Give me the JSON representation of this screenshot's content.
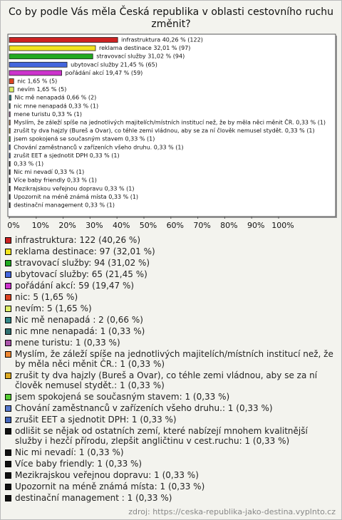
{
  "chart_data": {
    "type": "bar",
    "orientation": "horizontal",
    "title": "Co by podle Vás měla Česká republika v oblasti cestovního ruchu změnit?",
    "categories": [
      "infrastruktura: 122 (40,26 %)",
      "reklama destinace: 97 (32,01 %)",
      "stravovací služby: 94 (31,02 %)",
      "ubytovací služby: 65 (21,45 %)",
      "pořádání akcí: 59 (19,47 %)",
      "nic: 5 (1,65 %)",
      "nevím: 5 (1,65 %)",
      "Nic mě nenapadá : 2 (0,66 %)",
      "nic mne nenapadá: 1 (0,33 %)",
      "mene turistu: 1 (0,33 %)",
      "Myslím, že záleží spíše na jednotlivých majitelích/místních institucí než, že by měla něci měnit ČR.: 1 (0,33 %)",
      "zrušit ty dva hajzly (Bureš a Ovar), co téhle zemi vládnou, aby se za ní člověk nemusel stydět.: 1 (0,33 %)",
      "jsem spokojená se současným stavem: 1 (0,33 %)",
      "Chování zaměstnanců v zařízeních všeho druhu.: 1 (0,33 %)",
      "zrušit EET a sjednotit DPH: 1 (0,33 %)",
      "odlišit se nějak od ostatních zemí, které nabízejí mnohem kvalitnější služby i hezčí přírodu, zlepšit angličtinu v cest.ruchu: 1 (0,33 %)",
      "Nic mi nevadí: 1 (0,33 %)",
      "Více baby friendly: 1 (0,33 %)",
      "Mezikrajskou veřejnou dopravu: 1 (0,33 %)",
      "Upozornit na méně známá místa: 1 (0,33 %)",
      "destinační management : 1 (0,33 %)"
    ],
    "values": [
      40.26,
      32.01,
      31.02,
      21.45,
      19.47,
      1.65,
      1.65,
      0.66,
      0.33,
      0.33,
      0.33,
      0.33,
      0.33,
      0.33,
      0.33,
      0.33,
      0.33,
      0.33,
      0.33,
      0.33,
      0.33
    ],
    "value_labels": [
      "infrastruktura 40,26 % (122)",
      "reklama destinace 32,01 % (97)",
      "stravovací služby 31,02 % (94)",
      "ubytovací služby 21,45 % (65)",
      "pořádání akcí 19,47 % (59)",
      "nic 1,65 % (5)",
      "nevím 1,65 % (5)",
      "Nic mě nenapadá  0,66 % (2)",
      "nic mne nenapadá 0,33 % (1)",
      "mene turistu 0,33 % (1)",
      "Myslím, že záleží spíše na jednotlivých majitelích/místních institucí než, že by měla něci měnit ČR. 0,33 % (1)",
      "zrušit ty dva hajzly (Bureš a Ovar), co téhle zemi vládnou, aby se za ní člověk nemusel stydět. 0,33 % (1)",
      "jsem spokojená se současným stavem 0,33 % (1)",
      "Chování zaměstnanců v zařízeních všeho druhu. 0,33 % (1)",
      "zrušit EET a sjednotit DPH 0,33 % (1)",
      "0,33 % (1)",
      "Nic mi nevadí 0,33 % (1)",
      "Více baby friendly 0,33 % (1)",
      "Mezikrajskou veřejnou dopravu 0,33 % (1)",
      "Upozornit na méně známá místa 0,33 % (1)",
      "destinační management  0,33 % (1)"
    ],
    "colors": [
      "#cc2222",
      "#f2e41e",
      "#22aa22",
      "#4466dd",
      "#cc33cc",
      "#dd4422",
      "#dcee66",
      "#338888",
      "#2f7070",
      "#aa55aa",
      "#ee8833",
      "#ddaa22",
      "#55cc33",
      "#5577cc",
      "#4466bb",
      "#111111",
      "#111111",
      "#111111",
      "#111111",
      "#111111",
      "#111111"
    ],
    "xlim": [
      0,
      100
    ],
    "xticks": [
      {
        "value": 0,
        "label": "0%"
      },
      {
        "value": 10,
        "label": "10%"
      },
      {
        "value": 20,
        "label": "20%"
      },
      {
        "value": 30,
        "label": "30%"
      },
      {
        "value": 40,
        "label": "40%"
      },
      {
        "value": 50,
        "label": "50%"
      },
      {
        "value": 60,
        "label": "60%"
      },
      {
        "value": 70,
        "label": "70%"
      },
      {
        "value": 80,
        "label": "80%"
      },
      {
        "value": 90,
        "label": "90%"
      },
      {
        "value": 100,
        "label": "100%"
      }
    ],
    "source": "zdroj: https://ceska-republika-jako-destina.vyplnto.cz"
  }
}
